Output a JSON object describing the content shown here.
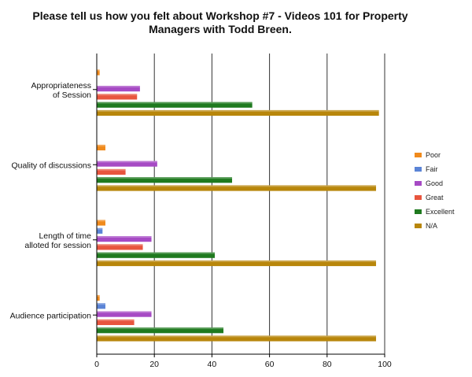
{
  "chart_data": {
    "type": "bar",
    "orientation": "horizontal",
    "title": "Please tell us how you felt about Workshop #7 - Videos 101 for Property\nManagers with Todd Breen.",
    "categories": [
      [
        "Appropriateness",
        "of Session"
      ],
      [
        "Quality of discussions"
      ],
      [
        "Length of time",
        "alloted for session"
      ],
      [
        "Audience participation"
      ]
    ],
    "xlim": [
      0,
      100
    ],
    "xticks": [
      0,
      20,
      40,
      60,
      80,
      100
    ],
    "grid": "vertical",
    "legend_position": "right",
    "series": [
      {
        "name": "Poor",
        "color": "#f08a1c",
        "values": [
          1,
          3,
          3,
          1
        ]
      },
      {
        "name": "Fair",
        "color": "#5b84d6",
        "values": [
          0,
          0,
          2,
          3
        ]
      },
      {
        "name": "Good",
        "color": "#a64ac4",
        "values": [
          15,
          21,
          19,
          19
        ]
      },
      {
        "name": "Great",
        "color": "#e8553e",
        "values": [
          14,
          10,
          16,
          13
        ]
      },
      {
        "name": "Excellent",
        "color": "#1f7a1f",
        "values": [
          54,
          47,
          41,
          44
        ]
      },
      {
        "name": "N/A",
        "color": "#b8860b",
        "values": [
          98,
          97,
          97,
          97
        ]
      }
    ]
  }
}
